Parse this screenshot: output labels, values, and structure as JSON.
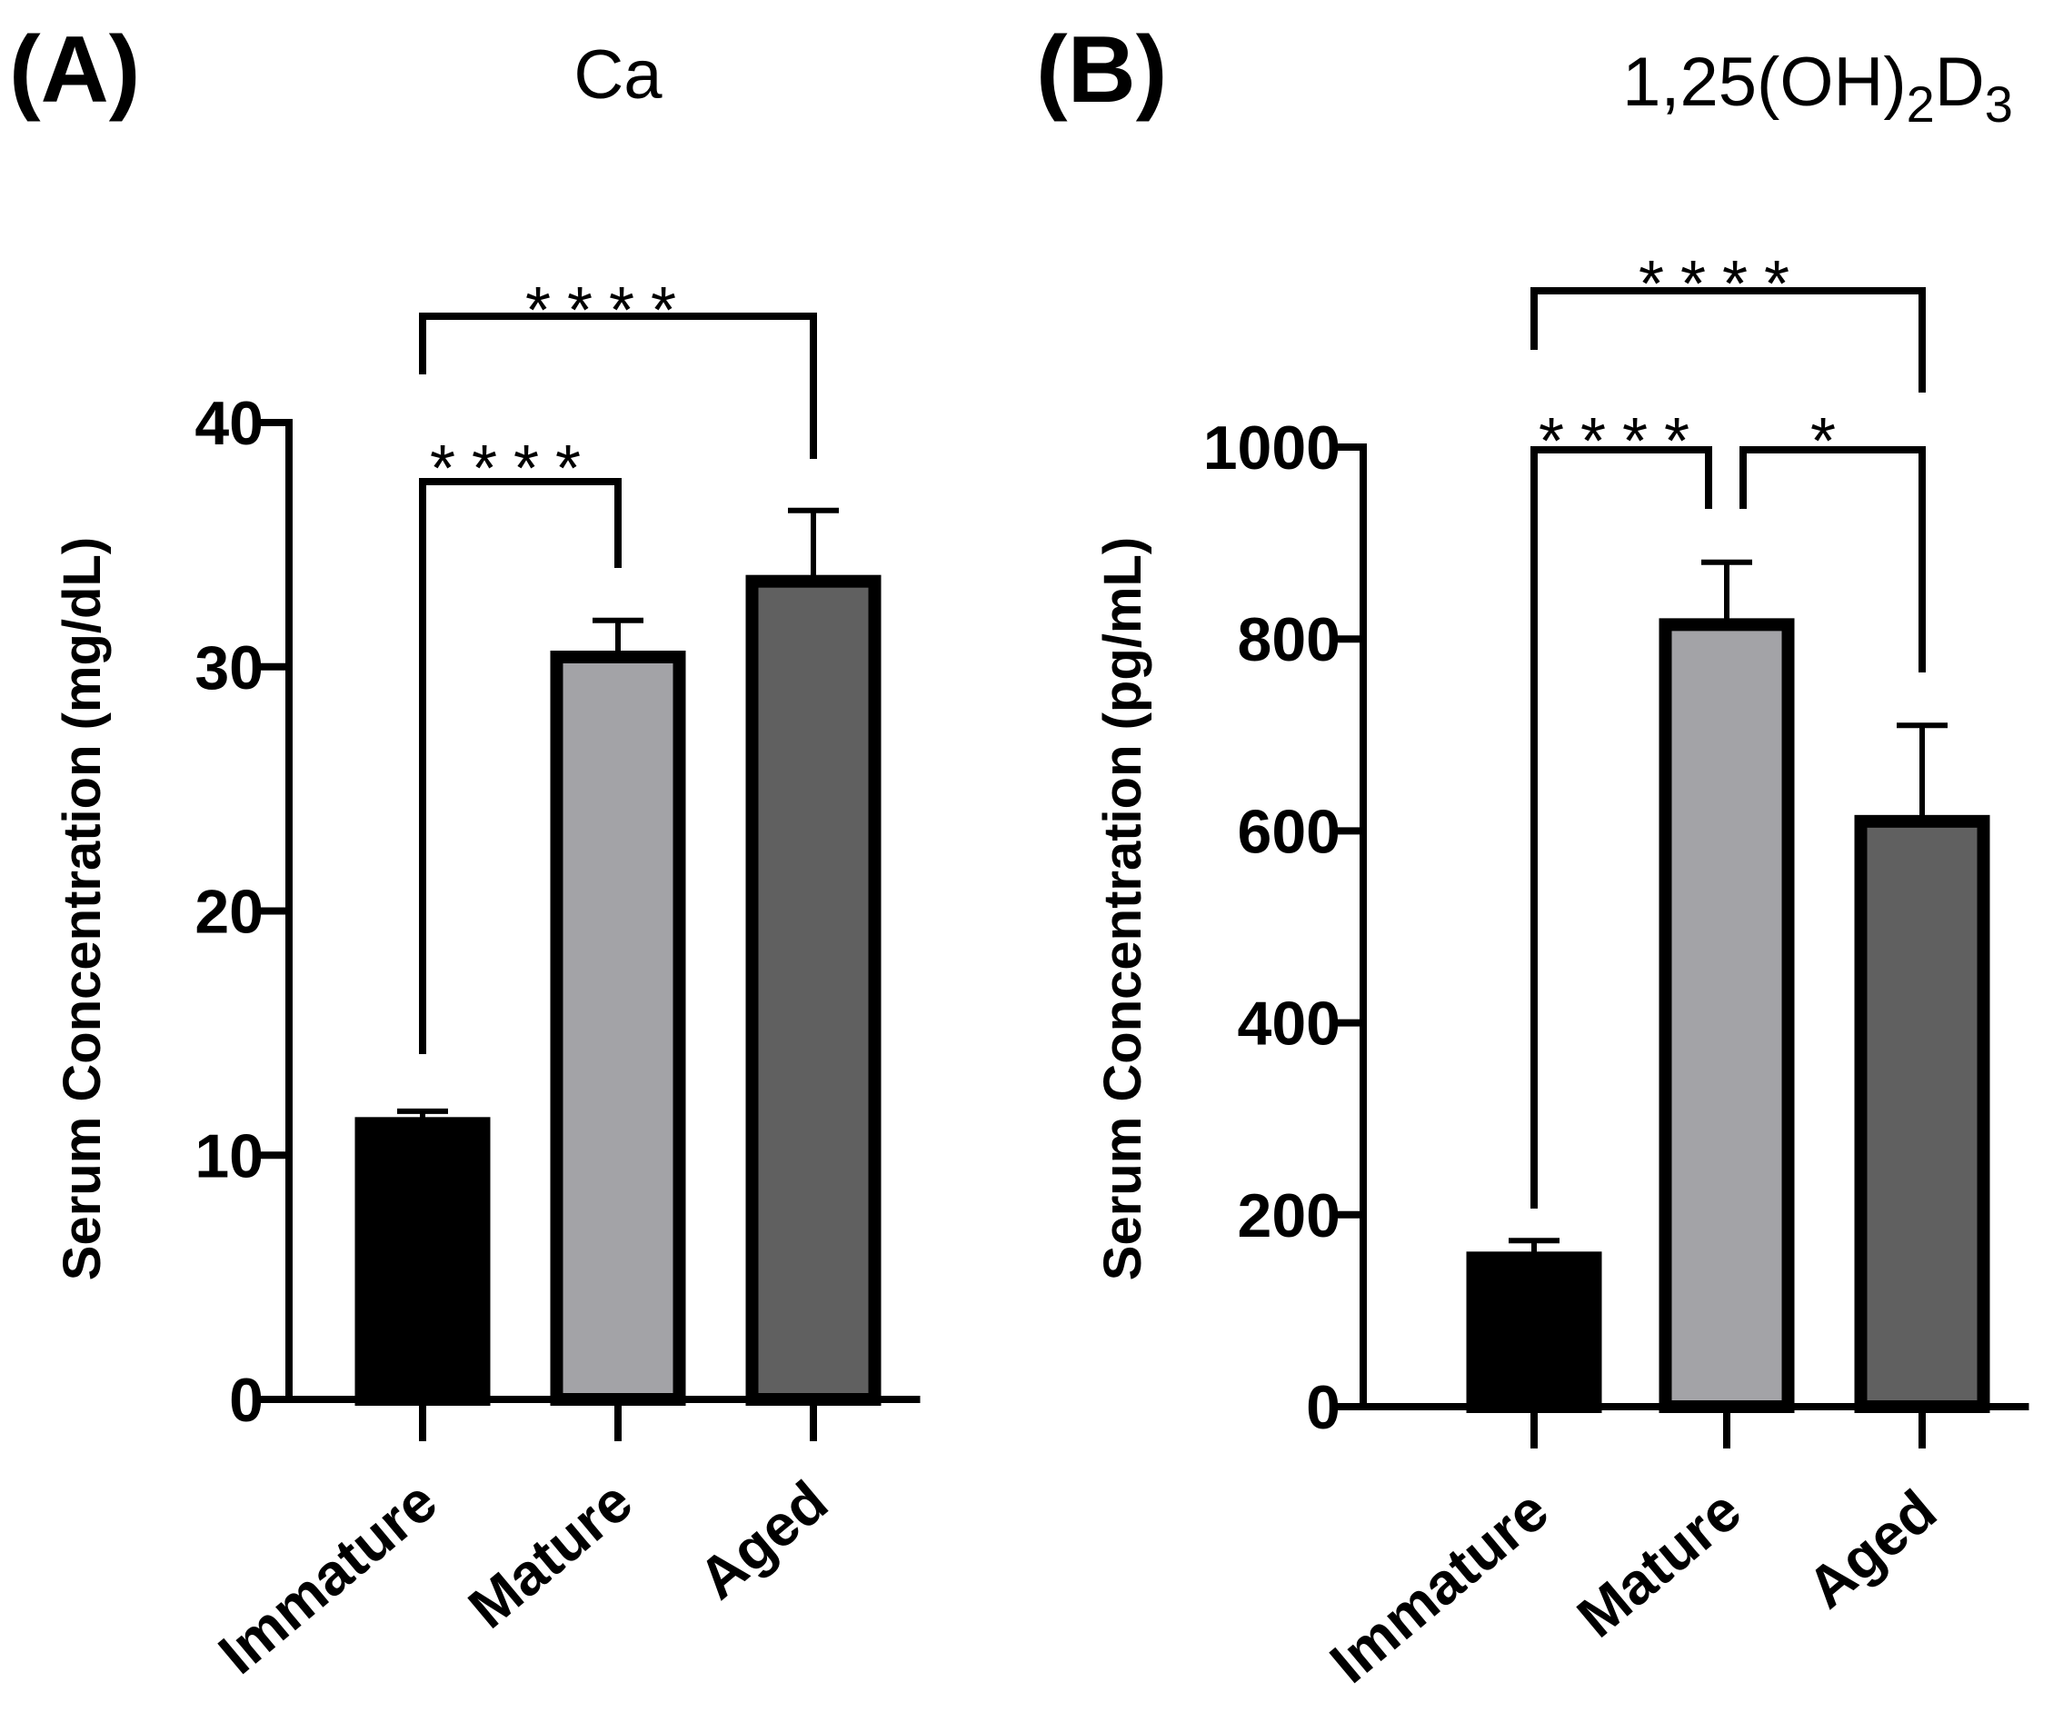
{
  "chart_data": [
    {
      "type": "bar",
      "panel_label": "(A)",
      "title": "Ca",
      "ylabel": "Serum Concentration (mg/dL)",
      "xlabel": "",
      "categories": [
        "Immature",
        "Mature",
        "Aged"
      ],
      "values": [
        11.3,
        30.4,
        33.5
      ],
      "errors": [
        0.5,
        1.5,
        2.9
      ],
      "colors": [
        "#000000",
        "#a3a3a7",
        "#606060"
      ],
      "ylim": [
        0,
        40
      ],
      "yticks": [
        "0",
        "10",
        "20",
        "30",
        "40"
      ],
      "comparisons": [
        {
          "from": "Immature",
          "to": "Mature",
          "label": "****"
        },
        {
          "from": "Immature",
          "to": "Aged",
          "label": "****"
        }
      ]
    },
    {
      "type": "bar",
      "panel_label": "(B)",
      "title": "1,25(OH)",
      "title_sub1": "2",
      "title_mid": "D",
      "title_sub2": "3",
      "ylabel": "Serum Concentration (pg/mL)",
      "xlabel": "",
      "categories": [
        "Immature",
        "Mature",
        "Aged"
      ],
      "values": [
        155,
        815,
        610
      ],
      "errors": [
        18,
        65,
        100
      ],
      "colors": [
        "#000000",
        "#a3a3a7",
        "#606060"
      ],
      "ylim": [
        0,
        1000
      ],
      "yticks": [
        "0",
        "200",
        "400",
        "600",
        "800",
        "1000"
      ],
      "comparisons": [
        {
          "from": "Immature",
          "to": "Mature",
          "label": "****"
        },
        {
          "from": "Mature",
          "to": "Aged",
          "label": "*"
        },
        {
          "from": "Immature",
          "to": "Aged",
          "label": "****"
        }
      ]
    }
  ]
}
